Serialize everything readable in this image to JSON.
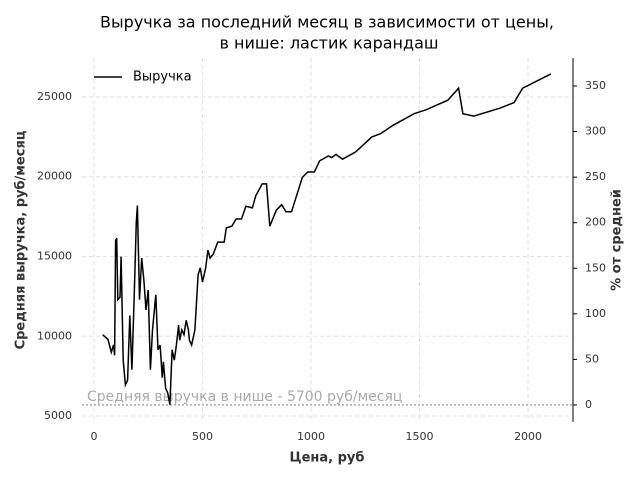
{
  "chart_data": {
    "type": "line",
    "title": [
      "Выручка за последний месяц в зависимости от цены,",
      "в нише: ластик карандаш"
    ],
    "x_label": "Цена, руб",
    "y_label": "Средняя выручка, руб/месяц",
    "y2_label": "% от средней",
    "xlim": [
      -55,
      2207
    ],
    "ylim": [
      4624,
      27445
    ],
    "y2lim": [
      -18.7,
      380.7
    ],
    "xticks": [
      0,
      500,
      1000,
      1500,
      2000
    ],
    "yticks": [
      5000,
      10000,
      15000,
      20000,
      25000
    ],
    "y2ticks": [
      0,
      50,
      100,
      150,
      200,
      250,
      300,
      350
    ],
    "grid": true,
    "legend": "upper left",
    "series": [
      {
        "name": "Выручка",
        "color": "#000000",
        "x": [
          40,
          65,
          80,
          90,
          95,
          100,
          105,
          110,
          120,
          125,
          135,
          145,
          155,
          165,
          175,
          185,
          195,
          200,
          210,
          220,
          230,
          240,
          250,
          260,
          270,
          285,
          295,
          305,
          315,
          320,
          330,
          340,
          350,
          360,
          370,
          380,
          390,
          395,
          405,
          415,
          425,
          435,
          440,
          450,
          465,
          480,
          490,
          500,
          515,
          525,
          535,
          550,
          570,
          600,
          610,
          635,
          655,
          680,
          700,
          730,
          745,
          775,
          795,
          810,
          840,
          865,
          885,
          910,
          960,
          985,
          1015,
          1040,
          1080,
          1095,
          1115,
          1145,
          1205,
          1245,
          1280,
          1320,
          1375,
          1475,
          1530,
          1630,
          1680,
          1700,
          1750,
          1870,
          1935,
          1975,
          2105
        ],
        "values": [
          10100,
          9800,
          9000,
          9450,
          8800,
          16000,
          16150,
          12300,
          12450,
          15000,
          8500,
          6950,
          7250,
          11300,
          7900,
          12300,
          17150,
          18200,
          12300,
          14900,
          13500,
          11650,
          12900,
          7900,
          10400,
          12600,
          9150,
          9450,
          7400,
          8400,
          6750,
          6450,
          5700,
          9150,
          8500,
          9450,
          10700,
          9750,
          10400,
          10100,
          11000,
          10400,
          9750,
          9450,
          10400,
          13850,
          14300,
          13400,
          14300,
          15400,
          14900,
          15150,
          15900,
          15900,
          16800,
          16900,
          17350,
          17350,
          18150,
          18050,
          18800,
          19550,
          19550,
          16900,
          17900,
          18250,
          17800,
          17800,
          19950,
          20300,
          20300,
          21000,
          21300,
          21200,
          21400,
          21100,
          21550,
          22050,
          22500,
          22700,
          23200,
          23950,
          24200,
          24800,
          25550,
          23950,
          23800,
          24300,
          24650,
          25550,
          26450
        ]
      }
    ],
    "hline": {
      "value": 5700,
      "label": "Средняя выручка в нише - 5700 руб/месяц",
      "color": "#aaaaaa"
    }
  }
}
